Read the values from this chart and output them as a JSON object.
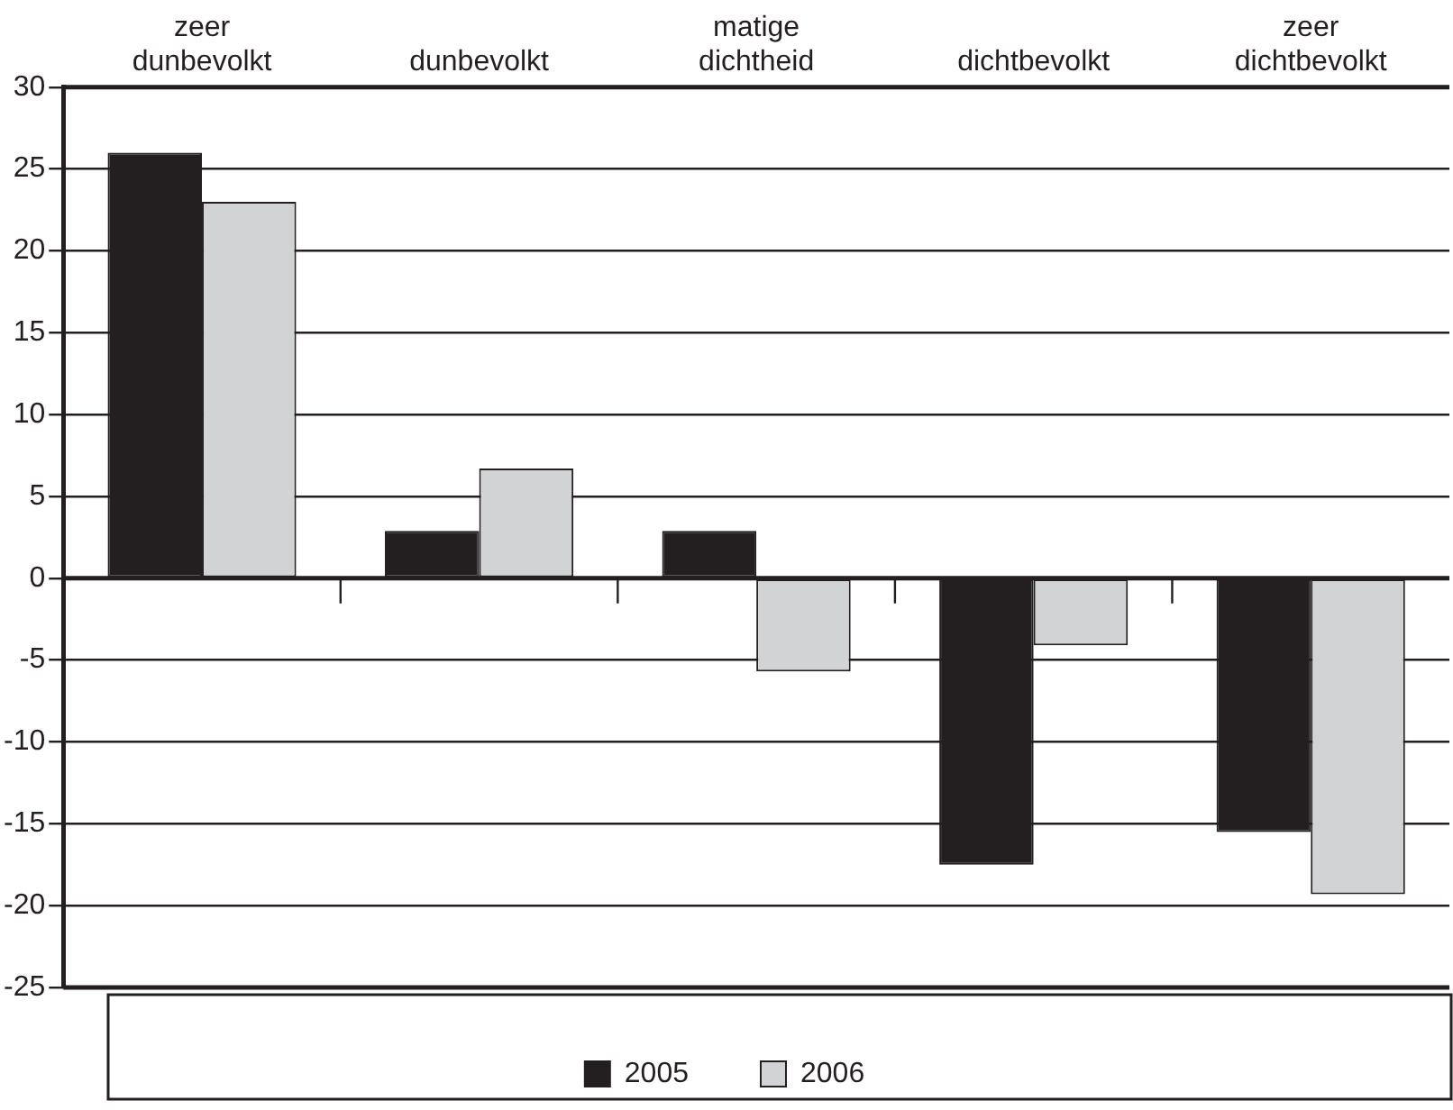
{
  "chart_data": {
    "type": "bar",
    "categories": [
      "zeer\ndunbevolkt",
      "dunbevolkt",
      "matige\ndichtheid",
      "dichtbevolkt",
      "zeer\ndichtbevolkt"
    ],
    "series": [
      {
        "name": "2005",
        "color": "#231f20",
        "values": [
          26,
          2.9,
          2.9,
          -17.5,
          -15.5
        ]
      },
      {
        "name": "2006",
        "color": "#d1d3d4",
        "values": [
          23,
          6.7,
          -5.7,
          -4.1,
          -19.3
        ]
      }
    ],
    "ylim": [
      -25,
      30
    ],
    "yticks": [
      -25,
      -20,
      -15,
      -10,
      -5,
      0,
      5,
      10,
      15,
      20,
      25,
      30
    ],
    "grid": "y",
    "legend": "bottom"
  }
}
